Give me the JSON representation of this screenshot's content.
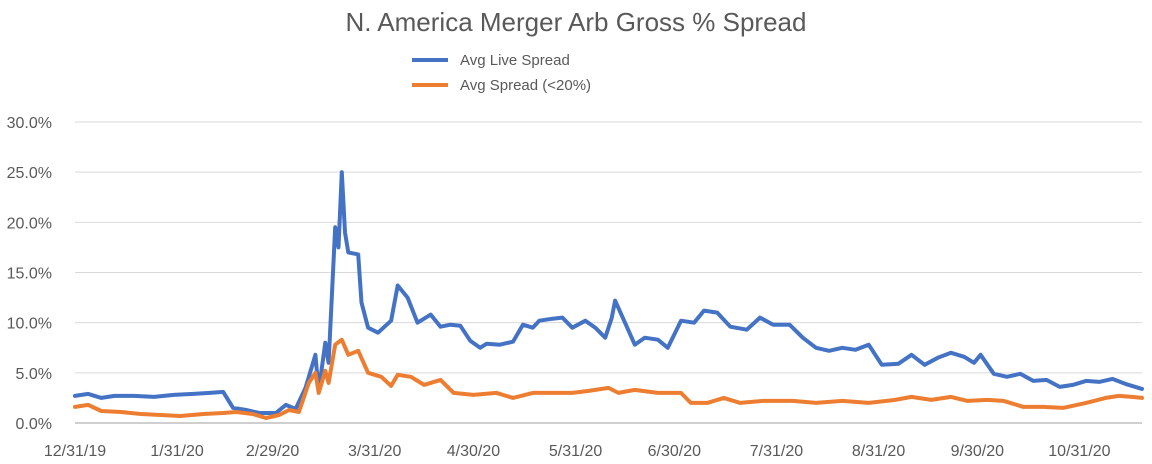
{
  "chart_data": {
    "type": "line",
    "title": "N. America Merger Arb Gross % Spread",
    "xlabel": "",
    "ylabel": "",
    "ylim": [
      0,
      30
    ],
    "yticks": [
      "0.0%",
      "5.0%",
      "10.0%",
      "15.0%",
      "20.0%",
      "25.0%",
      "30.0%"
    ],
    "xlim": [
      "2019-12-31",
      "2020-11-19"
    ],
    "xticks": [
      {
        "date": "2019-12-31",
        "label": "12/31/19"
      },
      {
        "date": "2020-01-31",
        "label": "1/31/20"
      },
      {
        "date": "2020-02-29",
        "label": "2/29/20"
      },
      {
        "date": "2020-03-31",
        "label": "3/31/20"
      },
      {
        "date": "2020-04-30",
        "label": "4/30/20"
      },
      {
        "date": "2020-05-31",
        "label": "5/31/20"
      },
      {
        "date": "2020-06-30",
        "label": "6/30/20"
      },
      {
        "date": "2020-07-31",
        "label": "7/31/20"
      },
      {
        "date": "2020-08-31",
        "label": "8/31/20"
      },
      {
        "date": "2020-09-30",
        "label": "9/30/20"
      },
      {
        "date": "2020-10-31",
        "label": "10/31/20"
      }
    ],
    "grid": true,
    "legend_position": "top-center",
    "series": [
      {
        "name": "Avg Live Spread",
        "color": "#4472C4",
        "points": [
          [
            "2019-12-31",
            2.7
          ],
          [
            "2020-01-04",
            2.9
          ],
          [
            "2020-01-08",
            2.5
          ],
          [
            "2020-01-12",
            2.7
          ],
          [
            "2020-01-18",
            2.7
          ],
          [
            "2020-01-24",
            2.6
          ],
          [
            "2020-01-30",
            2.8
          ],
          [
            "2020-02-05",
            2.9
          ],
          [
            "2020-02-10",
            3.0
          ],
          [
            "2020-02-14",
            3.1
          ],
          [
            "2020-02-17",
            1.5
          ],
          [
            "2020-02-21",
            1.3
          ],
          [
            "2020-02-25",
            1.0
          ],
          [
            "2020-03-01",
            1.0
          ],
          [
            "2020-03-04",
            1.8
          ],
          [
            "2020-03-07",
            1.4
          ],
          [
            "2020-03-10",
            3.5
          ],
          [
            "2020-03-13",
            6.8
          ],
          [
            "2020-03-14",
            3.2
          ],
          [
            "2020-03-16",
            8.0
          ],
          [
            "2020-03-17",
            6.0
          ],
          [
            "2020-03-19",
            19.5
          ],
          [
            "2020-03-20",
            17.5
          ],
          [
            "2020-03-21",
            25.0
          ],
          [
            "2020-03-22",
            19.0
          ],
          [
            "2020-03-23",
            17.0
          ],
          [
            "2020-03-26",
            16.8
          ],
          [
            "2020-03-27",
            12.0
          ],
          [
            "2020-03-29",
            9.5
          ],
          [
            "2020-04-01",
            9.0
          ],
          [
            "2020-04-05",
            10.2
          ],
          [
            "2020-04-07",
            13.7
          ],
          [
            "2020-04-10",
            12.5
          ],
          [
            "2020-04-13",
            10.0
          ],
          [
            "2020-04-17",
            10.8
          ],
          [
            "2020-04-20",
            9.6
          ],
          [
            "2020-04-23",
            9.8
          ],
          [
            "2020-04-26",
            9.7
          ],
          [
            "2020-04-29",
            8.2
          ],
          [
            "2020-05-02",
            7.5
          ],
          [
            "2020-05-04",
            7.9
          ],
          [
            "2020-05-08",
            7.8
          ],
          [
            "2020-05-12",
            8.1
          ],
          [
            "2020-05-15",
            9.8
          ],
          [
            "2020-05-18",
            9.5
          ],
          [
            "2020-05-20",
            10.2
          ],
          [
            "2020-05-24",
            10.4
          ],
          [
            "2020-05-27",
            10.5
          ],
          [
            "2020-05-30",
            9.5
          ],
          [
            "2020-06-03",
            10.2
          ],
          [
            "2020-06-06",
            9.5
          ],
          [
            "2020-06-09",
            8.5
          ],
          [
            "2020-06-11",
            10.5
          ],
          [
            "2020-06-12",
            12.2
          ],
          [
            "2020-06-15",
            10.0
          ],
          [
            "2020-06-18",
            7.8
          ],
          [
            "2020-06-21",
            8.5
          ],
          [
            "2020-06-25",
            8.3
          ],
          [
            "2020-06-28",
            7.5
          ],
          [
            "2020-07-02",
            10.2
          ],
          [
            "2020-07-06",
            10.0
          ],
          [
            "2020-07-09",
            11.2
          ],
          [
            "2020-07-13",
            11.0
          ],
          [
            "2020-07-17",
            9.6
          ],
          [
            "2020-07-22",
            9.3
          ],
          [
            "2020-07-26",
            10.5
          ],
          [
            "2020-07-30",
            9.8
          ],
          [
            "2020-08-04",
            9.8
          ],
          [
            "2020-08-08",
            8.5
          ],
          [
            "2020-08-12",
            7.5
          ],
          [
            "2020-08-16",
            7.2
          ],
          [
            "2020-08-20",
            7.5
          ],
          [
            "2020-08-24",
            7.3
          ],
          [
            "2020-08-28",
            7.8
          ],
          [
            "2020-09-01",
            5.8
          ],
          [
            "2020-09-06",
            5.9
          ],
          [
            "2020-09-10",
            6.8
          ],
          [
            "2020-09-14",
            5.8
          ],
          [
            "2020-09-18",
            6.5
          ],
          [
            "2020-09-22",
            7.0
          ],
          [
            "2020-09-26",
            6.6
          ],
          [
            "2020-09-29",
            6.0
          ],
          [
            "2020-10-01",
            6.8
          ],
          [
            "2020-10-05",
            4.9
          ],
          [
            "2020-10-09",
            4.6
          ],
          [
            "2020-10-13",
            4.9
          ],
          [
            "2020-10-17",
            4.2
          ],
          [
            "2020-10-21",
            4.3
          ],
          [
            "2020-10-25",
            3.6
          ],
          [
            "2020-10-29",
            3.8
          ],
          [
            "2020-11-02",
            4.2
          ],
          [
            "2020-11-06",
            4.1
          ],
          [
            "2020-11-10",
            4.4
          ],
          [
            "2020-11-14",
            3.9
          ],
          [
            "2020-11-19",
            3.4
          ]
        ]
      },
      {
        "name": "Avg Spread (<20%)",
        "color": "#ED7D31",
        "points": [
          [
            "2019-12-31",
            1.6
          ],
          [
            "2020-01-04",
            1.8
          ],
          [
            "2020-01-08",
            1.2
          ],
          [
            "2020-01-14",
            1.1
          ],
          [
            "2020-01-20",
            0.9
          ],
          [
            "2020-01-26",
            0.8
          ],
          [
            "2020-02-01",
            0.7
          ],
          [
            "2020-02-08",
            0.9
          ],
          [
            "2020-02-14",
            1.0
          ],
          [
            "2020-02-18",
            1.1
          ],
          [
            "2020-02-23",
            0.9
          ],
          [
            "2020-02-27",
            0.5
          ],
          [
            "2020-03-02",
            0.8
          ],
          [
            "2020-03-05",
            1.3
          ],
          [
            "2020-03-08",
            1.1
          ],
          [
            "2020-03-11",
            4.0
          ],
          [
            "2020-03-13",
            5.0
          ],
          [
            "2020-03-14",
            3.0
          ],
          [
            "2020-03-16",
            5.2
          ],
          [
            "2020-03-17",
            4.0
          ],
          [
            "2020-03-19",
            7.8
          ],
          [
            "2020-03-21",
            8.3
          ],
          [
            "2020-03-23",
            6.8
          ],
          [
            "2020-03-26",
            7.2
          ],
          [
            "2020-03-29",
            5.0
          ],
          [
            "2020-04-02",
            4.6
          ],
          [
            "2020-04-05",
            3.7
          ],
          [
            "2020-04-07",
            4.8
          ],
          [
            "2020-04-11",
            4.6
          ],
          [
            "2020-04-15",
            3.8
          ],
          [
            "2020-04-20",
            4.3
          ],
          [
            "2020-04-24",
            3.0
          ],
          [
            "2020-04-30",
            2.8
          ],
          [
            "2020-05-07",
            3.0
          ],
          [
            "2020-05-12",
            2.5
          ],
          [
            "2020-05-18",
            3.0
          ],
          [
            "2020-05-24",
            3.0
          ],
          [
            "2020-05-30",
            3.0
          ],
          [
            "2020-06-04",
            3.2
          ],
          [
            "2020-06-10",
            3.5
          ],
          [
            "2020-06-13",
            3.0
          ],
          [
            "2020-06-18",
            3.3
          ],
          [
            "2020-06-25",
            3.0
          ],
          [
            "2020-07-02",
            3.0
          ],
          [
            "2020-07-05",
            2.0
          ],
          [
            "2020-07-10",
            2.0
          ],
          [
            "2020-07-15",
            2.5
          ],
          [
            "2020-07-20",
            2.0
          ],
          [
            "2020-07-27",
            2.2
          ],
          [
            "2020-08-05",
            2.2
          ],
          [
            "2020-08-12",
            2.0
          ],
          [
            "2020-08-20",
            2.2
          ],
          [
            "2020-08-28",
            2.0
          ],
          [
            "2020-09-05",
            2.3
          ],
          [
            "2020-09-10",
            2.6
          ],
          [
            "2020-09-16",
            2.3
          ],
          [
            "2020-09-22",
            2.6
          ],
          [
            "2020-09-27",
            2.2
          ],
          [
            "2020-10-03",
            2.3
          ],
          [
            "2020-10-08",
            2.2
          ],
          [
            "2020-10-14",
            1.6
          ],
          [
            "2020-10-20",
            1.6
          ],
          [
            "2020-10-26",
            1.5
          ],
          [
            "2020-11-02",
            2.0
          ],
          [
            "2020-11-08",
            2.5
          ],
          [
            "2020-11-12",
            2.7
          ],
          [
            "2020-11-16",
            2.6
          ],
          [
            "2020-11-19",
            2.5
          ]
        ]
      }
    ]
  }
}
